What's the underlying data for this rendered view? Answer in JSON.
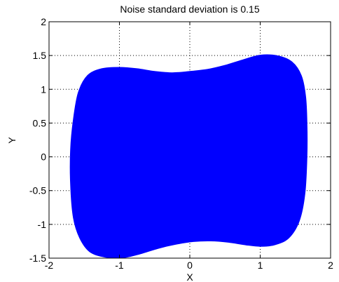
{
  "chart_data": {
    "type": "area",
    "title": "Noise standard deviation is 0.15",
    "xlabel": "X",
    "ylabel": "Y",
    "xlim": [
      -2,
      2
    ],
    "ylim": [
      -1.5,
      2
    ],
    "xticks": [
      -2,
      -1,
      0,
      1,
      2
    ],
    "yticks": [
      -1.5,
      -1,
      -0.5,
      0,
      0.5,
      1,
      1.5,
      2
    ],
    "xtick_labels": [
      "-2",
      "-1",
      "0",
      "1",
      "2"
    ],
    "ytick_labels": [
      "-1.5",
      "-1",
      "-0.5",
      "0",
      "0.5",
      "1",
      "1.5",
      "2"
    ],
    "grid": true,
    "fill_color": "#0000ff",
    "series": [
      {
        "x": [
          1.66,
          1.66,
          1.64,
          1.58,
          1.45,
          1.25,
          1.0,
          0.75,
          0.5,
          0.25,
          0.0,
          -0.25,
          -0.5,
          -0.75,
          -1.0,
          -1.25,
          -1.45,
          -1.58,
          -1.65,
          -1.69,
          -1.69,
          -1.65,
          -1.56,
          -1.42,
          -1.2,
          -0.95,
          -0.7,
          -0.45,
          -0.2,
          0.05,
          0.3,
          0.55,
          0.8,
          1.0,
          1.2,
          1.4,
          1.55,
          1.63,
          1.66
        ],
        "y": [
          0.0,
          0.5,
          0.9,
          1.2,
          1.4,
          1.49,
          1.5,
          1.43,
          1.35,
          1.29,
          1.26,
          1.24,
          1.26,
          1.3,
          1.32,
          1.3,
          1.2,
          0.95,
          0.55,
          0.1,
          -0.4,
          -0.9,
          -1.2,
          -1.4,
          -1.48,
          -1.49,
          -1.43,
          -1.35,
          -1.29,
          -1.25,
          -1.24,
          -1.26,
          -1.3,
          -1.32,
          -1.3,
          -1.2,
          -0.95,
          -0.55,
          0.0
        ]
      }
    ]
  }
}
